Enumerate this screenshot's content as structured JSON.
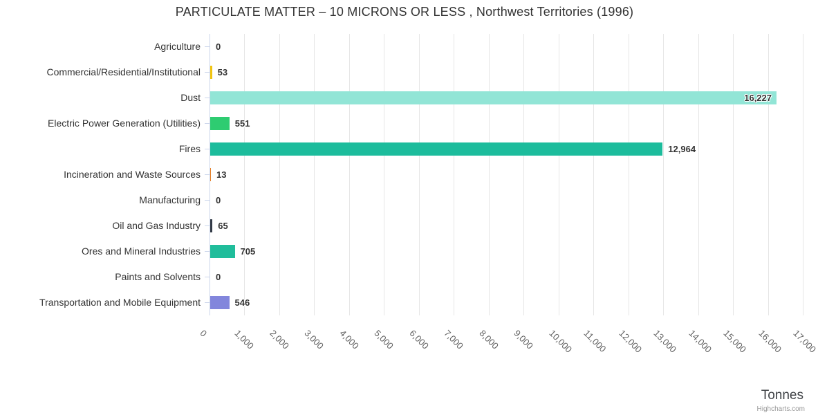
{
  "credit": "Highcharts.com",
  "chart_data": {
    "type": "bar",
    "orientation": "horizontal",
    "title": "PARTICULATE MATTER – 10 MICRONS OR LESS , Northwest Territories (1996)",
    "categories": [
      "Agriculture",
      "Commercial/Residential/Institutional",
      "Dust",
      "Electric Power Generation (Utilities)",
      "Fires",
      "Incineration and Waste Sources",
      "Manufacturing",
      "Oil and Gas Industry",
      "Ores and Mineral Industries",
      "Paints and Solvents",
      "Transportation and Mobile Equipment"
    ],
    "values": [
      0,
      53,
      16227,
      551,
      12964,
      13,
      0,
      65,
      705,
      0,
      546
    ],
    "value_labels": [
      "0",
      "53",
      "16,227",
      "551",
      "12,964",
      "13",
      "0",
      "65",
      "705",
      "0",
      "546"
    ],
    "bar_colors": [
      null,
      "#F1C40F",
      "#92E5D6",
      "#2ECC71",
      "#1CBC9C",
      "#E67E22",
      null,
      "#323A46",
      "#20BD9B",
      null,
      "#8286DC"
    ],
    "xlabel": "Tonnes",
    "xlim": [
      0,
      17000
    ],
    "tick_interval": 1000,
    "tick_labels": [
      "0",
      "1,000",
      "2,000",
      "3,000",
      "4,000",
      "5,000",
      "6,000",
      "7,000",
      "8,000",
      "9,000",
      "10,000",
      "11,000",
      "12,000",
      "13,000",
      "14,000",
      "15,000",
      "16,000",
      "17,000"
    ],
    "grid": true,
    "legend": false,
    "gridline_color": "#e6e6e6",
    "axis_line_color": "#ccd6eb"
  }
}
